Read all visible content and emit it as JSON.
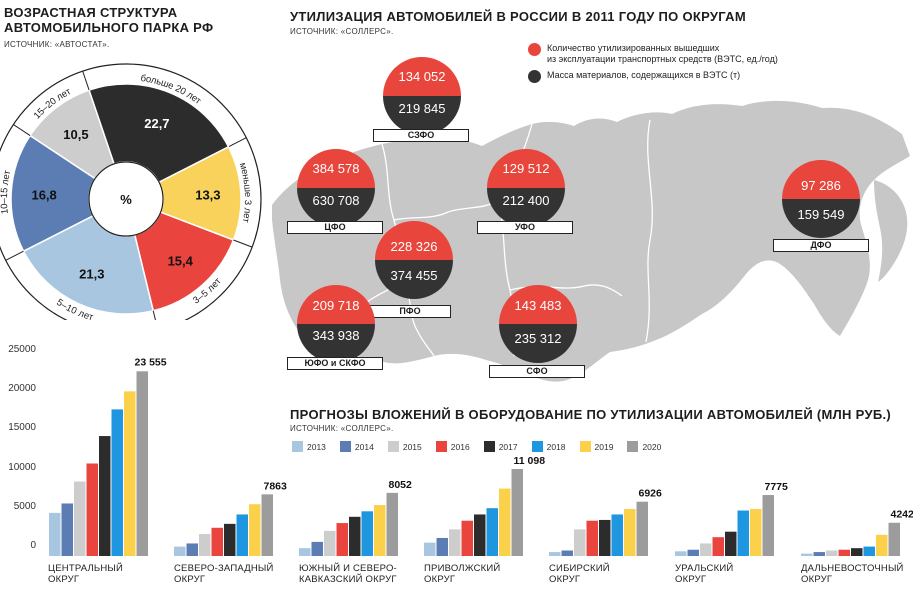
{
  "age": {
    "title_line1": "ВОЗРАСТНАЯ СТРУКТУРА",
    "title_line2": "АВТОМОБИЛЬНОГО ПАРКА РФ",
    "source": "ИСТОЧНИК: «АВТОСТАТ».",
    "center": "%"
  },
  "map": {
    "title": "УТИЛИЗАЦИЯ АВТОМОБИЛЕЙ В РОССИИ В 2011 ГОДУ ПО ОКРУГАМ",
    "source": "ИСТОЧНИК: «СОЛЛЕРС».",
    "legend1_line1": "Количество утилизированных вышедших",
    "legend1_line2": "из эксплуатации транспортных средств (ВЭТС, ед./год)",
    "legend2": "Масса материалов, содержащихся в ВЭТС (т)",
    "color_red": "#e8453c",
    "color_dark": "#333333",
    "districts": [
      {
        "name": "СЗФО",
        "count": "134 052",
        "mass": "219 845"
      },
      {
        "name": "ЦФО",
        "count": "384 578",
        "mass": "630 708"
      },
      {
        "name": "УФО",
        "count": "129 512",
        "mass": "212 400"
      },
      {
        "name": "ДФО",
        "count": "97 286",
        "mass": "159 549"
      },
      {
        "name": "ПФО",
        "count": "228 326",
        "mass": "374 455"
      },
      {
        "name": "ЮФО и СКФО",
        "count": "209 718",
        "mass": "343 938"
      },
      {
        "name": "СФО",
        "count": "143 483",
        "mass": "235 312"
      }
    ]
  },
  "forecast": {
    "title": "ПРОГНОЗЫ ВЛОЖЕНИЙ В ОБОРУДОВАНИЕ ПО УТИЛИЗАЦИИ АВТОМОБИЛЕЙ (МЛН РУБ.)",
    "source": "ИСТОЧНИК: «СОЛЛЕРС».",
    "groups": [
      {
        "line1": "ЦЕНТРАЛЬНЫЙ",
        "line2": "ОКРУГ",
        "label": "23 555"
      },
      {
        "line1": "СЕВЕРО-ЗАПАДНЫЙ",
        "line2": "ОКРУГ",
        "label": "7863"
      },
      {
        "line1": "ЮЖНЫЙ И СЕВЕРО-",
        "line2": "КАВКАЗСКИЙ ОКРУГ",
        "label": "8052"
      },
      {
        "line1": "ПРИВОЛЖСКИЙ",
        "line2": "ОКРУГ",
        "label": "11 098"
      },
      {
        "line1": "СИБИРСКИЙ",
        "line2": "ОКРУГ",
        "label": "6926"
      },
      {
        "line1": "УРАЛЬСКИЙ",
        "line2": "ОКРУГ",
        "label": "7775"
      },
      {
        "line1": "ДАЛЬНЕВОСТОЧНЫЙ",
        "line2": "ОКРУГ",
        "label": "4242"
      }
    ]
  },
  "chart_data": [
    {
      "type": "pie",
      "title": "ВОЗРАСТНАЯ СТРУКТУРА АВТОМОБИЛЬНОГО ПАРКА РФ",
      "unit": "%",
      "categories": [
        "меньше 3 лет",
        "3–5 лет",
        "5–10 лет",
        "10–15 лет",
        "15–20 лет",
        "больше 20 лет"
      ],
      "values": [
        13.3,
        15.4,
        21.3,
        16.8,
        10.5,
        22.7
      ],
      "value_labels": [
        "13,3",
        "15,4",
        "21,3",
        "16,8",
        "10,5",
        "22,7"
      ],
      "colors": [
        "#f9d25c",
        "#e9443e",
        "#a9c6e1",
        "#5b7db3",
        "#cdcdcd",
        "#2c2c2c"
      ]
    },
    {
      "type": "bar",
      "title": "ПРОГНОЗЫ ВЛОЖЕНИЙ В ОБОРУДОВАНИЕ ПО УТИЛИЗАЦИИ АВТОМОБИЛЕЙ (МЛН РУБ.)",
      "categories": [
        "ЦЕНТРАЛЬНЫЙ ОКРУГ",
        "СЕВЕРО-ЗАПАДНЫЙ ОКРУГ",
        "ЮЖНЫЙ И СЕВЕРО-КАВКАЗСКИЙ ОКРУГ",
        "ПРИВОЛЖСКИЙ ОКРУГ",
        "СИБИРСКИЙ ОКРУГ",
        "УРАЛЬСКИЙ ОКРУГ",
        "ДАЛЬНЕВОСТОЧНЫЙ ОКРУГ"
      ],
      "ylim": [
        0,
        25000
      ],
      "yticks": [
        "0",
        "5000",
        "10000",
        "15000",
        "20000",
        "25000"
      ],
      "series": [
        {
          "name": "2013",
          "color": "#a9c6e1",
          "values": [
            5500,
            1200,
            1000,
            1700,
            500,
            600,
            300
          ]
        },
        {
          "name": "2014",
          "color": "#5b7db3",
          "values": [
            6700,
            1600,
            1800,
            2300,
            700,
            800,
            500
          ]
        },
        {
          "name": "2015",
          "color": "#cdcdcd",
          "values": [
            9500,
            2800,
            3200,
            3400,
            3400,
            1600,
            700
          ]
        },
        {
          "name": "2016",
          "color": "#e9443e",
          "values": [
            11800,
            3600,
            4200,
            4500,
            4500,
            2400,
            800
          ]
        },
        {
          "name": "2017",
          "color": "#2c2c2c",
          "values": [
            15300,
            4100,
            5000,
            5300,
            4600,
            3100,
            1000
          ]
        },
        {
          "name": "2018",
          "color": "#1e96e0",
          "values": [
            18700,
            5300,
            5700,
            6100,
            5300,
            5800,
            1200
          ]
        },
        {
          "name": "2019",
          "color": "#fbd04a",
          "values": [
            21000,
            6600,
            6500,
            8600,
            6000,
            6000,
            2700
          ]
        },
        {
          "name": "2020",
          "color": "#9c9c9c",
          "values": [
            23555,
            7863,
            8052,
            11098,
            6926,
            7775,
            4242
          ]
        }
      ]
    }
  ]
}
